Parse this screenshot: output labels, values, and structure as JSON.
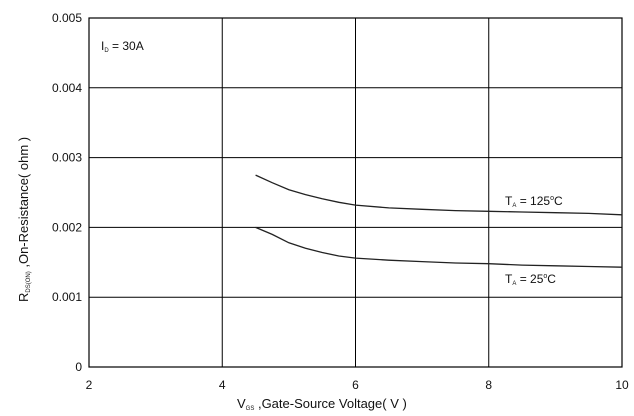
{
  "chart_data": {
    "type": "line",
    "title": "",
    "xlabel": {
      "prefix": "V",
      "sub": "GS",
      "rest": " ,Gate-Source Voltage( V )"
    },
    "ylabel": {
      "prefix": "R",
      "sub": "DS(ON)",
      "rest": " ,On-Resistance( ohm )"
    },
    "xlim": [
      2,
      10
    ],
    "ylim": [
      0,
      0.005
    ],
    "x_ticks": [
      "2",
      "4",
      "6",
      "8",
      "10"
    ],
    "y_ticks": [
      "0",
      "0.001",
      "0.002",
      "0.003",
      "0.004",
      "0.005"
    ],
    "grid": true,
    "annotation": {
      "prefix": "I",
      "sub": "D",
      "rest": " = 30A"
    },
    "series": [
      {
        "name": "TA = 125°C",
        "label": {
          "prefix": "T",
          "sub": "A",
          "mid": " = 125",
          "sup": "o",
          "suffix": "C"
        },
        "x": [
          4.5,
          4.75,
          5.0,
          5.25,
          5.5,
          5.75,
          6.0,
          6.5,
          7.0,
          7.5,
          8.0,
          8.5,
          9.0,
          9.5,
          10.0
        ],
        "y": [
          0.00275,
          0.00264,
          0.00254,
          0.00247,
          0.00241,
          0.00236,
          0.00232,
          0.00228,
          0.00226,
          0.00224,
          0.00223,
          0.00222,
          0.00221,
          0.0022,
          0.00218
        ]
      },
      {
        "name": "TA = 25°C",
        "label": {
          "prefix": "T",
          "sub": "A",
          "mid": " = 25",
          "sup": "o",
          "suffix": "C"
        },
        "x": [
          4.5,
          4.75,
          5.0,
          5.25,
          5.5,
          5.75,
          6.0,
          6.5,
          7.0,
          7.5,
          8.0,
          8.5,
          9.0,
          9.5,
          10.0
        ],
        "y": [
          0.002,
          0.0019,
          0.00178,
          0.0017,
          0.00164,
          0.00159,
          0.00156,
          0.00153,
          0.00151,
          0.00149,
          0.00148,
          0.00146,
          0.00145,
          0.00144,
          0.00143
        ]
      }
    ]
  }
}
